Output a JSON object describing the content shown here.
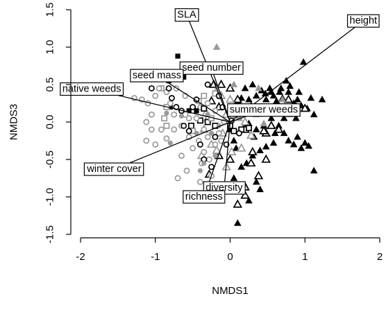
{
  "chart_data": {
    "type": "scatter",
    "xlabel": "NMDS1",
    "ylabel": "NMDS3",
    "xlim": [
      -2,
      2
    ],
    "ylim": [
      -1.5,
      1.5
    ],
    "xticks": [
      "-2",
      "-1",
      "0",
      "1",
      "2"
    ],
    "yticks": [
      "-1.5",
      "-1.0",
      "-0.5",
      "0.0",
      "0.5",
      "1.0",
      "1.5"
    ],
    "colors": {
      "black": "#000000",
      "gray": "#999999",
      "axis": "#000000"
    },
    "vectors": [
      {
        "label": "SLA",
        "x": -0.58,
        "y": 1.43
      },
      {
        "label": "height",
        "x": 1.78,
        "y": 1.35
      },
      {
        "label": "seed number",
        "x": -0.25,
        "y": 0.72
      },
      {
        "label": "seed mass",
        "x": -0.98,
        "y": 0.62
      },
      {
        "label": "native weeds",
        "x": -1.85,
        "y": 0.44
      },
      {
        "label": "summer weeds",
        "x": 0.45,
        "y": 0.16
      },
      {
        "label": "winter cover",
        "x": -1.55,
        "y": -0.63
      },
      {
        "label": "diversity",
        "x": -0.08,
        "y": -0.88
      },
      {
        "label": "richness",
        "x": -0.35,
        "y": -1.0
      }
    ],
    "series": [
      {
        "marker": "filled-triangle",
        "color": "black",
        "points": [
          [
            0.42,
            0.42
          ],
          [
            0.47,
            0.38
          ],
          [
            0.53,
            0.45
          ],
          [
            0.58,
            0.35
          ],
          [
            0.62,
            0.28
          ],
          [
            0.66,
            0.4
          ],
          [
            0.7,
            0.32
          ],
          [
            0.75,
            0.55
          ],
          [
            0.8,
            0.48
          ],
          [
            0.85,
            0.25
          ],
          [
            0.9,
            0.3
          ],
          [
            0.95,
            0.22
          ],
          [
            0.98,
            0.8
          ],
          [
            1.03,
            0.18
          ],
          [
            1.08,
            0.32
          ],
          [
            1.12,
            0.1
          ],
          [
            1.23,
            0.3
          ],
          [
            0.35,
            0.35
          ],
          [
            0.3,
            0.5
          ],
          [
            0.25,
            0.3
          ],
          [
            0.2,
            0.45
          ],
          [
            0.15,
            0.32
          ],
          [
            0.1,
            0.28
          ],
          [
            0.55,
            0.05
          ],
          [
            0.62,
            0.12
          ],
          [
            0.72,
            0.05
          ],
          [
            0.8,
            0.15
          ],
          [
            0.88,
            0.05
          ],
          [
            0.5,
            0.15
          ],
          [
            0.42,
            0.2
          ],
          [
            0.65,
            -0.05
          ],
          [
            0.72,
            -0.15
          ],
          [
            0.78,
            -0.25
          ],
          [
            0.85,
            -0.3
          ],
          [
            0.9,
            -0.2
          ],
          [
            0.95,
            -0.35
          ],
          [
            1.0,
            -0.28
          ],
          [
            1.05,
            -0.32
          ],
          [
            0.58,
            -0.28
          ],
          [
            0.48,
            -0.33
          ],
          [
            0.4,
            -0.38
          ],
          [
            0.3,
            -0.45
          ],
          [
            0.22,
            -0.55
          ],
          [
            0.15,
            -0.6
          ],
          [
            0.32,
            -0.2
          ],
          [
            0.05,
            -0.25
          ],
          [
            0.0,
            -0.1
          ],
          [
            0.12,
            0.05
          ],
          [
            0.18,
            -0.08
          ],
          [
            0.25,
            -0.02
          ],
          [
            0.35,
            -0.1
          ],
          [
            0.08,
            -0.35
          ],
          [
            1.12,
            -0.65
          ],
          [
            0.35,
            -0.8
          ],
          [
            0.4,
            -0.9
          ],
          [
            0.2,
            -0.85
          ],
          [
            0.25,
            -1.05
          ],
          [
            0.1,
            -1.35
          ],
          [
            0.05,
            -0.75
          ],
          [
            -0.25,
            -1.05
          ],
          [
            0.6,
            0.2
          ],
          [
            0.48,
            0.3
          ],
          [
            0.68,
            0.45
          ],
          [
            0.78,
            0.4
          ],
          [
            0.92,
            0.4
          ],
          [
            0.55,
            0.4
          ],
          [
            0.28,
            0.22
          ],
          [
            0.45,
            -0.05
          ],
          [
            0.6,
            -0.15
          ]
        ]
      },
      {
        "marker": "open-triangle",
        "color": "black",
        "points": [
          [
            0.78,
            0.3
          ],
          [
            0.88,
            0.2
          ],
          [
            1.0,
            0.18
          ],
          [
            0.6,
            0.18
          ],
          [
            0.55,
            -0.05
          ],
          [
            0.48,
            -0.15
          ],
          [
            0.2,
            -0.1
          ],
          [
            0.65,
            -0.1
          ],
          [
            0.3,
            -0.4
          ],
          [
            0.48,
            -0.5
          ],
          [
            0.28,
            -0.55
          ],
          [
            0.2,
            -0.87
          ],
          [
            0.2,
            -0.98
          ],
          [
            0.1,
            -1.1
          ],
          [
            -0.22,
            0.5
          ],
          [
            -0.35,
            0.7
          ],
          [
            -0.12,
            0.5
          ],
          [
            0.0,
            0.45
          ],
          [
            0.1,
            0.3
          ],
          [
            -0.15,
            0.2
          ],
          [
            -0.25,
            0.28
          ],
          [
            0.0,
            -0.5
          ],
          [
            -0.15,
            -0.45
          ],
          [
            -0.28,
            -0.7
          ],
          [
            0.38,
            -0.72
          ],
          [
            0.05,
            -0.92
          ],
          [
            0.45,
            -0.12
          ]
        ]
      },
      {
        "marker": "filled-triangle",
        "color": "gray",
        "points": [
          [
            -0.18,
            1.0
          ],
          [
            0.12,
            0.05
          ],
          [
            0.35,
            0.1
          ],
          [
            0.45,
            -0.02
          ],
          [
            0.65,
            0.15
          ],
          [
            0.7,
            0.3
          ],
          [
            0.8,
            0.1
          ],
          [
            0.38,
            0.45
          ],
          [
            0.05,
            0.5
          ]
        ]
      },
      {
        "marker": "open-triangle",
        "color": "gray",
        "points": [
          [
            -0.4,
            0.2
          ],
          [
            -0.32,
            0.12
          ],
          [
            -0.3,
            0.05
          ],
          [
            -0.35,
            -0.1
          ],
          [
            -0.25,
            -0.3
          ],
          [
            -0.38,
            -0.45
          ],
          [
            -0.18,
            -0.38
          ],
          [
            -0.1,
            -0.15
          ],
          [
            -0.05,
            0.1
          ],
          [
            0.1,
            0.1
          ],
          [
            0.2,
            0.0
          ],
          [
            0.28,
            -0.18
          ],
          [
            0.15,
            -0.35
          ],
          [
            0.02,
            -0.4
          ],
          [
            -0.05,
            -0.6
          ],
          [
            -0.12,
            0.35
          ],
          [
            -0.18,
            0.42
          ],
          [
            0.0,
            0.3
          ]
        ]
      },
      {
        "marker": "filled-square",
        "color": "black",
        "points": [
          [
            -0.7,
            0.88
          ],
          [
            -0.55,
            0.15
          ],
          [
            -0.82,
            0.55
          ],
          [
            -0.62,
            0.6
          ],
          [
            -0.8,
            0.2
          ],
          [
            -0.45,
            0.15
          ]
        ]
      },
      {
        "marker": "open-square",
        "color": "black",
        "points": [
          [
            -0.52,
            -0.05
          ],
          [
            -0.4,
            0.02
          ],
          [
            -0.3,
            0.0
          ],
          [
            -0.35,
            0.18
          ],
          [
            -0.2,
            -0.05
          ],
          [
            0.0,
            -0.05
          ],
          [
            0.15,
            -0.1
          ],
          [
            0.25,
            -0.08
          ],
          [
            0.05,
            -0.12
          ]
        ]
      },
      {
        "marker": "open-square",
        "color": "gray",
        "points": [
          [
            -0.92,
            0.45
          ],
          [
            -0.85,
            0.2
          ],
          [
            -0.88,
            0.05
          ],
          [
            -0.85,
            -0.05
          ],
          [
            -0.6,
            0.1
          ],
          [
            -0.5,
            -0.12
          ],
          [
            -0.35,
            0.35
          ],
          [
            -0.2,
            0.38
          ],
          [
            -0.42,
            0.28
          ],
          [
            -0.25,
            0.05
          ]
        ]
      },
      {
        "marker": "open-circle",
        "color": "gray",
        "points": [
          [
            -1.28,
            0.32
          ],
          [
            -1.18,
            0.3
          ],
          [
            -1.1,
            0.25
          ],
          [
            -1.0,
            0.35
          ],
          [
            -1.05,
            0.1
          ],
          [
            -1.12,
            0.0
          ],
          [
            -1.05,
            -0.1
          ],
          [
            -1.12,
            -0.25
          ],
          [
            -1.0,
            -0.3
          ],
          [
            -0.92,
            -0.1
          ],
          [
            -0.85,
            -0.22
          ],
          [
            -0.85,
            0.4
          ],
          [
            -0.8,
            0.25
          ],
          [
            -0.95,
            0.45
          ],
          [
            -0.75,
            -0.1
          ],
          [
            -0.65,
            -0.05
          ],
          [
            -0.55,
            -0.2
          ],
          [
            -0.5,
            -0.35
          ],
          [
            -0.42,
            -0.25
          ],
          [
            -0.35,
            -0.4
          ],
          [
            -0.65,
            -0.45
          ],
          [
            -0.58,
            -0.65
          ],
          [
            -0.7,
            -0.75
          ],
          [
            -0.38,
            -0.55
          ],
          [
            -0.28,
            -0.5
          ],
          [
            -0.2,
            -0.3
          ],
          [
            -0.15,
            -0.15
          ],
          [
            -0.3,
            -0.2
          ],
          [
            -0.45,
            0.05
          ],
          [
            -0.6,
            0.35
          ],
          [
            -0.72,
            0.45
          ],
          [
            -0.25,
            -0.72
          ],
          [
            -0.4,
            -0.8
          ],
          [
            -0.35,
            -0.1
          ],
          [
            -0.2,
            0.15
          ],
          [
            -0.08,
            0.0
          ],
          [
            -0.12,
            -0.25
          ],
          [
            -0.3,
            0.25
          ],
          [
            -0.55,
            0.05
          ],
          [
            -0.75,
            0.1
          ]
        ]
      },
      {
        "marker": "open-circle",
        "color": "black",
        "points": [
          [
            -1.05,
            0.45
          ],
          [
            -0.82,
            0.45
          ],
          [
            -0.78,
            0.32
          ],
          [
            -0.72,
            0.2
          ],
          [
            -0.65,
            0.15
          ],
          [
            -0.62,
            -0.05
          ],
          [
            -0.45,
            0.3
          ],
          [
            -0.3,
            0.5
          ],
          [
            -0.15,
            0.35
          ],
          [
            -0.5,
            0.2
          ],
          [
            -0.55,
            -0.12
          ],
          [
            -0.4,
            -0.3
          ],
          [
            -0.35,
            -0.5
          ],
          [
            -0.2,
            -0.2
          ],
          [
            -0.1,
            0.2
          ],
          [
            0.02,
            0.02
          ],
          [
            -0.05,
            -0.3
          ],
          [
            0.12,
            -0.15
          ],
          [
            -0.25,
            -0.6
          ]
        ]
      },
      {
        "marker": "filled-circle",
        "color": "gray",
        "points": [
          [
            -0.85,
            0.12
          ],
          [
            -0.8,
            -0.28
          ],
          [
            -0.65,
            0.08
          ],
          [
            -0.35,
            -0.55
          ],
          [
            -0.4,
            -0.65
          ],
          [
            -0.2,
            -0.45
          ],
          [
            -0.3,
            0.1
          ],
          [
            -0.15,
            -0.05
          ],
          [
            -0.45,
            -0.15
          ],
          [
            -0.25,
            -0.15
          ]
        ]
      }
    ]
  }
}
